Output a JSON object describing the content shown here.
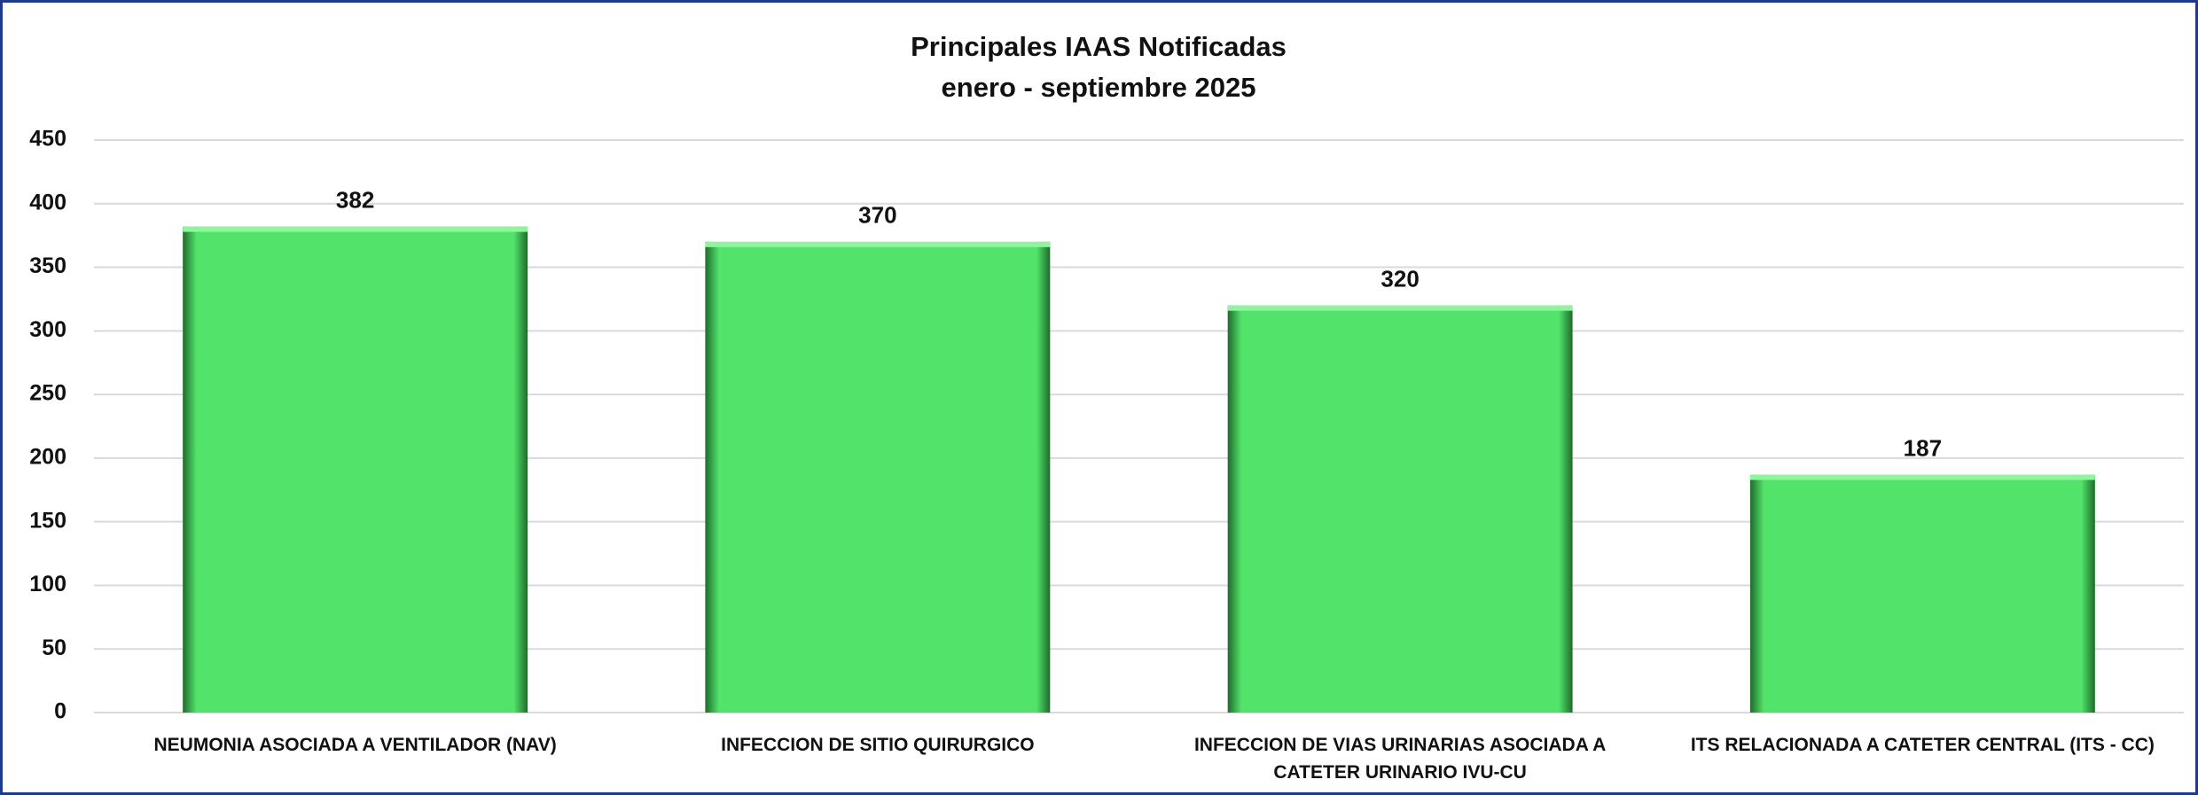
{
  "chart_data": {
    "type": "bar",
    "title": "Principales IAAS Notificadas",
    "subtitle": "enero - septiembre 2025",
    "categories": [
      "NEUMONIA ASOCIADA A VENTILADOR (NAV)",
      "INFECCION DE SITIO QUIRURGICO",
      "INFECCION DE VIAS URINARIAS ASOCIADA A CATETER URINARIO IVU-CU",
      "ITS RELACIONADA A CATETER CENTRAL (ITS - CC)"
    ],
    "values": [
      382,
      370,
      320,
      187
    ],
    "color": "#52e36a",
    "ylim": [
      0,
      450
    ],
    "yticks": [
      0,
      50,
      100,
      150,
      200,
      250,
      300,
      350,
      400,
      450
    ],
    "grid": true
  }
}
